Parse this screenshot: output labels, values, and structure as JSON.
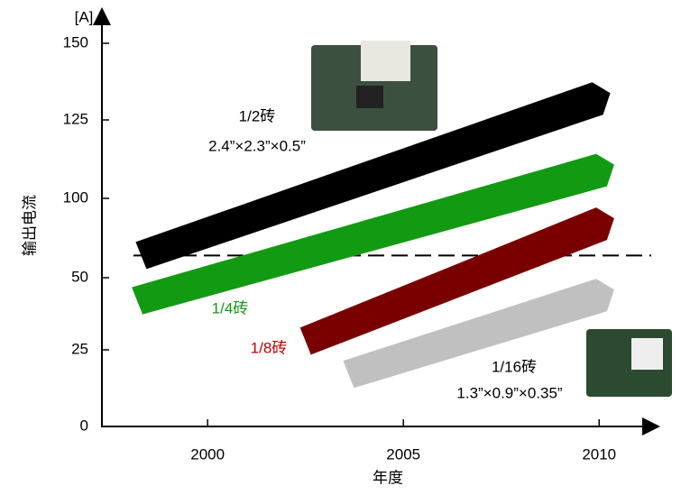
{
  "chart_data": {
    "type": "line",
    "y_unit": "[A]",
    "y_label": "输出电流",
    "x_label": "年度",
    "xlim": [
      1997.3,
      2011.4
    ],
    "xticks": [
      2000,
      2005,
      2010
    ],
    "ylim": [
      0,
      150
    ],
    "yticks": [
      0,
      25,
      50,
      100,
      125,
      150
    ],
    "reference_line": 64,
    "series": [
      {
        "name": "1/2砖",
        "size": "2.4”×2.3”×0.5”",
        "color": "#000000",
        "label_color": "#000000",
        "x": [
          1998.3,
          2010.1
        ],
        "values": [
          64,
          132
        ]
      },
      {
        "name": "1/4砖",
        "color": "#139a13",
        "label_color": "#139a13",
        "x": [
          1998.2,
          2010.2
        ],
        "values": [
          42,
          109
        ]
      },
      {
        "name": "1/8砖",
        "color": "#7a0000",
        "label_color": "#c00000",
        "x": [
          2002.5,
          2010.2
        ],
        "values": [
          28,
          84
        ]
      },
      {
        "name": "1/16砖",
        "size": "1.3”×0.9”×0.35”",
        "color": "#c0c0c0",
        "label_color": "#000000",
        "x": [
          2003.6,
          2010.2
        ],
        "values": [
          17,
          44
        ]
      }
    ]
  }
}
